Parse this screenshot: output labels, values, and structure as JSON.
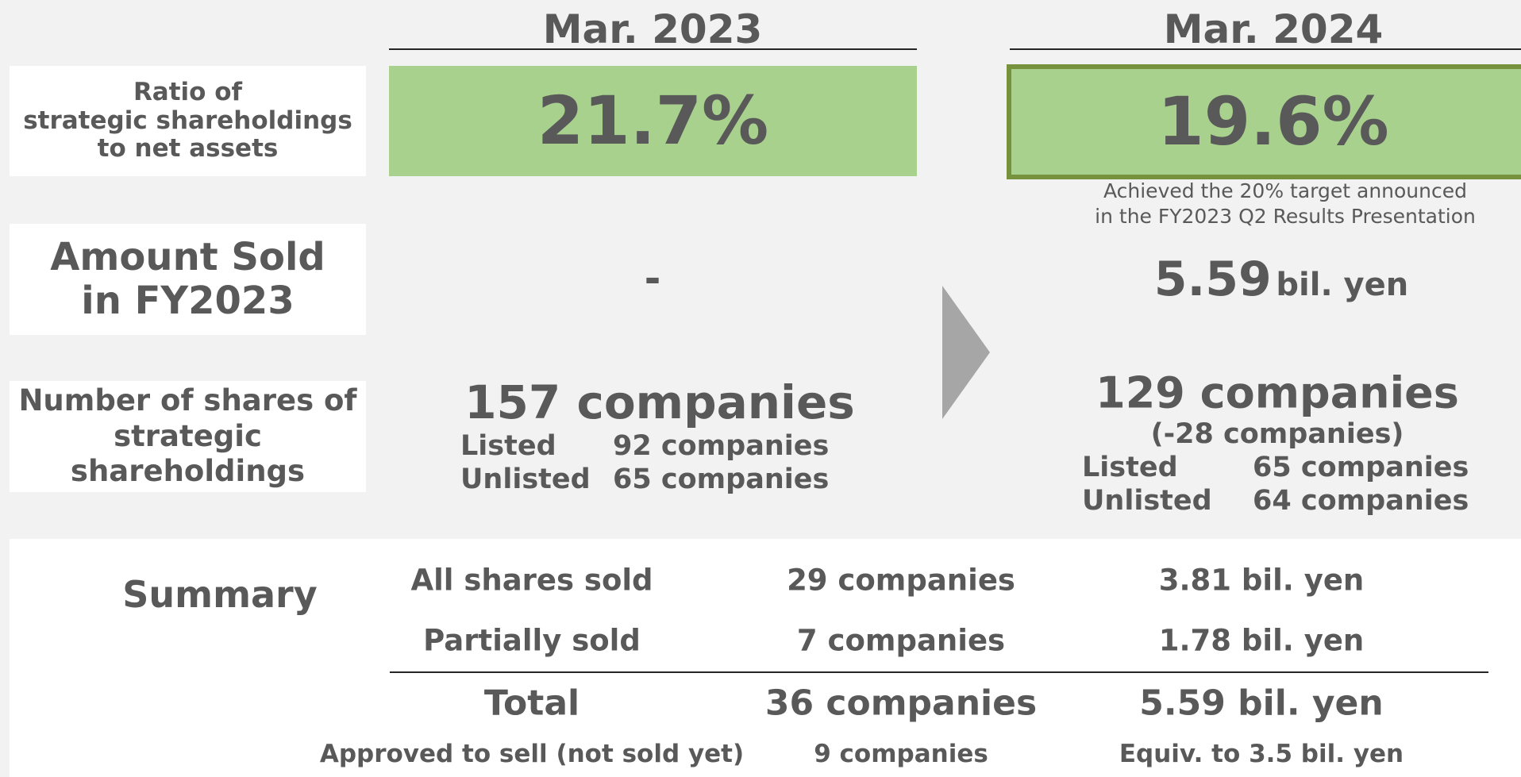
{
  "headers": [
    "Mar. 2023",
    "Mar. 2024"
  ],
  "rows": {
    "ratio": {
      "label": [
        "Ratio of",
        "strategic shareholdings",
        "to net assets"
      ],
      "mar2023": "21.7%",
      "mar2024": "19.6%",
      "note": [
        "Achieved the 20% target announced",
        "in the FY2023 Q2 Results Presentation"
      ]
    },
    "amount_sold": {
      "label": [
        "Amount Sold",
        "in FY2023"
      ],
      "mar2023": "-",
      "mar2024": {
        "value": "5.59",
        "unit": "bil. yen"
      }
    },
    "number_of_shares": {
      "label": [
        "Number of shares of",
        "strategic",
        "shareholdings"
      ],
      "mar2023": {
        "total": "157 companies",
        "breakdown": [
          [
            "Listed",
            "92 companies"
          ],
          [
            "Unlisted",
            "65 companies"
          ]
        ]
      },
      "mar2024": {
        "total": "129 companies",
        "change": "(-28 companies)",
        "breakdown": [
          [
            "Listed",
            "65 companies"
          ],
          [
            "Unlisted",
            "64 companies"
          ]
        ]
      }
    }
  },
  "summary": {
    "title": "Summary",
    "rows": [
      [
        "All shares sold",
        "29 companies",
        "3.81 bil. yen"
      ],
      [
        "Partially sold",
        "7 companies",
        "1.78 bil. yen"
      ]
    ],
    "total": [
      "Total",
      "36 companies",
      "5.59 bil. yen"
    ],
    "approved": [
      "Approved to sell (not sold yet)",
      "9 companies",
      "Equiv. to 3.5 bil. yen"
    ]
  }
}
